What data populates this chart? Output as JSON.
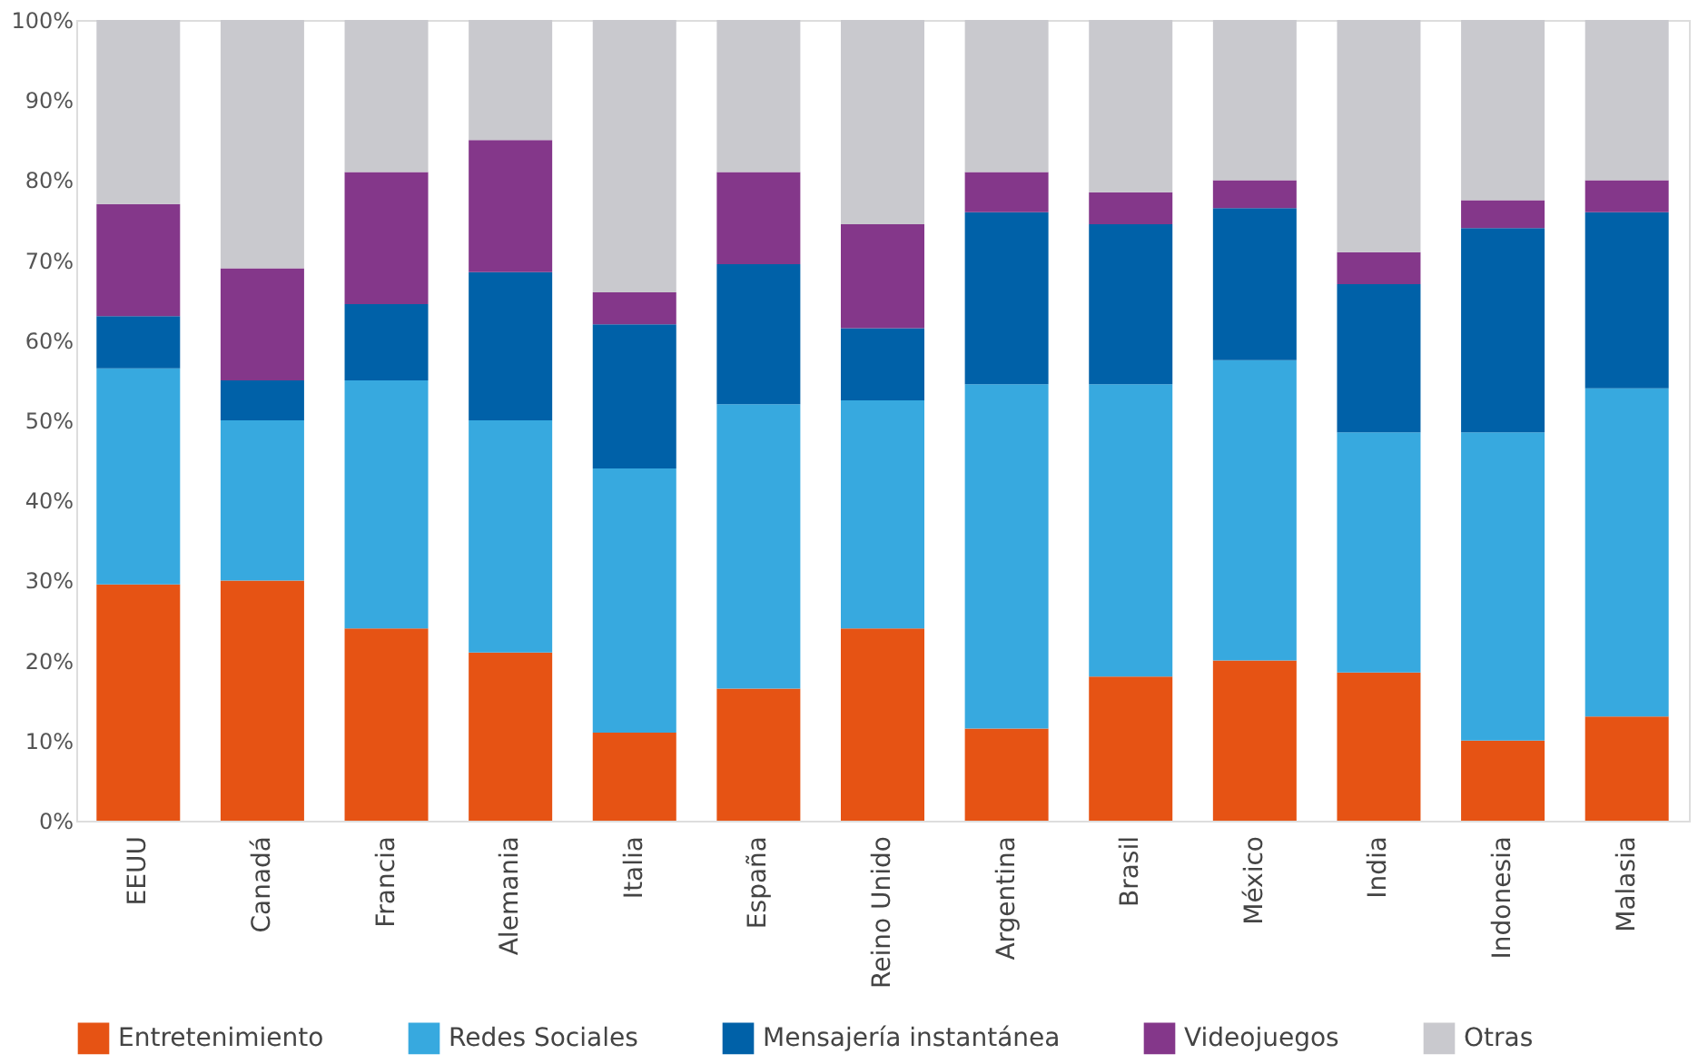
{
  "chart_data": {
    "type": "bar",
    "stacked": true,
    "categories": [
      "EEUU",
      "Canadá",
      "Francia",
      "Alemania",
      "Italia",
      "España",
      "Reino Unido",
      "Argentina",
      "Brasil",
      "México",
      "India",
      "Indonesia",
      "Malasia"
    ],
    "series": [
      {
        "name": "Entretenimiento",
        "color": "#e65314",
        "values": [
          29.5,
          30,
          24,
          21,
          11,
          16.5,
          24,
          11.5,
          18,
          20,
          18.5,
          10,
          13
        ]
      },
      {
        "name": "Redes Sociales",
        "color": "#37a9df",
        "values": [
          27,
          20,
          31,
          29,
          33,
          35.5,
          28.5,
          43,
          36.5,
          37.5,
          30,
          38.5,
          41
        ]
      },
      {
        "name": "Mensajería instantánea",
        "color": "#0061a8",
        "values": [
          6.5,
          5,
          9.5,
          18.5,
          18,
          17.5,
          9,
          21.5,
          20,
          19,
          18.5,
          25.5,
          22
        ]
      },
      {
        "name": "Videojuegos",
        "color": "#84378a",
        "values": [
          14,
          14,
          16.5,
          16.5,
          4,
          11.5,
          13,
          5,
          4,
          3.5,
          4,
          3.5,
          4
        ]
      },
      {
        "name": "Otras",
        "color": "#c9c9ce",
        "values": [
          23,
          31,
          19,
          15,
          34,
          19,
          25.5,
          19,
          21.5,
          20,
          29,
          22.5,
          20
        ]
      }
    ],
    "ylim": [
      0,
      100
    ],
    "yticks": [
      {
        "value": 0,
        "label": "0%"
      },
      {
        "value": 10,
        "label": "10%"
      },
      {
        "value": 20,
        "label": "20%"
      },
      {
        "value": 30,
        "label": "30%"
      },
      {
        "value": 40,
        "label": "40%"
      },
      {
        "value": 50,
        "label": "50%"
      },
      {
        "value": 60,
        "label": "60%"
      },
      {
        "value": 70,
        "label": "70%"
      },
      {
        "value": 80,
        "label": "80%"
      },
      {
        "value": 90,
        "label": "90%"
      },
      {
        "value": 100,
        "label": "100%"
      }
    ],
    "grid": false,
    "legend": "bottom"
  }
}
